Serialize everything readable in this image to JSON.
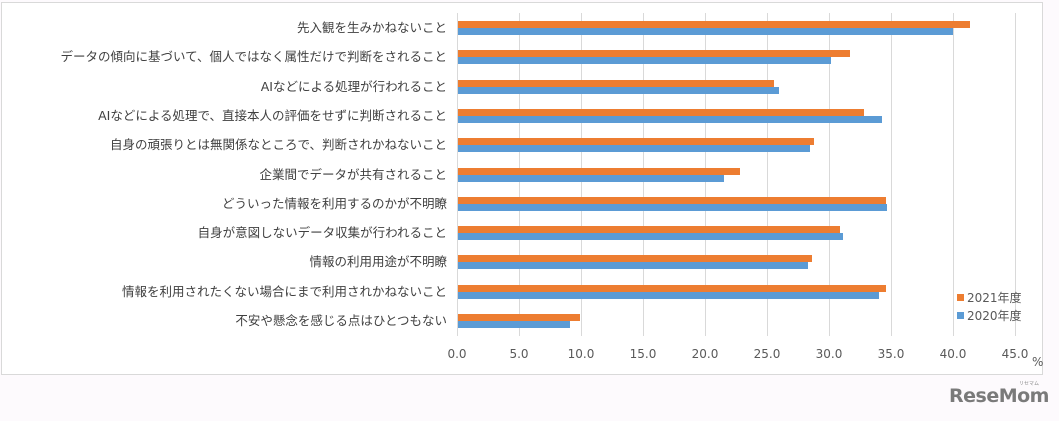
{
  "chart_data": {
    "type": "bar",
    "orientation": "horizontal",
    "title": "",
    "xlabel": "",
    "ylabel": "",
    "unit": "%",
    "xlim": [
      0,
      45
    ],
    "x_ticks": [
      "0.0",
      "5.0",
      "10.0",
      "15.0",
      "20.0",
      "25.0",
      "30.0",
      "35.0",
      "40.0",
      "45.0"
    ],
    "grid": true,
    "legend_position": "right-bottom",
    "categories": [
      "先入観を生みかねないこと",
      "データの傾向に基づいて、個人ではなく属性だけで判断をされること",
      "AIなどによる処理が行われること",
      "AIなどによる処理で、直接本人の評価をせずに判断されること",
      "自身の頑張りとは無関係なところで、判断されかねないこと",
      "企業間でデータが共有されること",
      "どういった情報を利用するのかが不明瞭",
      "自身が意図しないデータ収集が行われること",
      "情報の利用用途が不明瞭",
      "情報を利用されたくない場合にまで利用されかねないこと",
      "不安や懸念を感じる点はひとつもない"
    ],
    "series": [
      {
        "name": "2021年度",
        "color": "#ed7d31",
        "values": [
          41.4,
          31.7,
          25.6,
          32.8,
          28.8,
          22.8,
          34.6,
          30.9,
          28.6,
          34.6,
          9.9
        ]
      },
      {
        "name": "2020年度",
        "color": "#5b9bd5",
        "values": [
          40.0,
          30.2,
          26.0,
          34.3,
          28.5,
          21.5,
          34.7,
          31.1,
          28.3,
          34.0,
          9.1
        ]
      }
    ]
  },
  "legend": {
    "items": [
      {
        "label": "2021年度",
        "color": "#ed7d31"
      },
      {
        "label": "2020年度",
        "color": "#5b9bd5"
      }
    ]
  },
  "unit_label": "%",
  "watermark": {
    "logo": "ReseMom",
    "ruby": "リセマム"
  }
}
